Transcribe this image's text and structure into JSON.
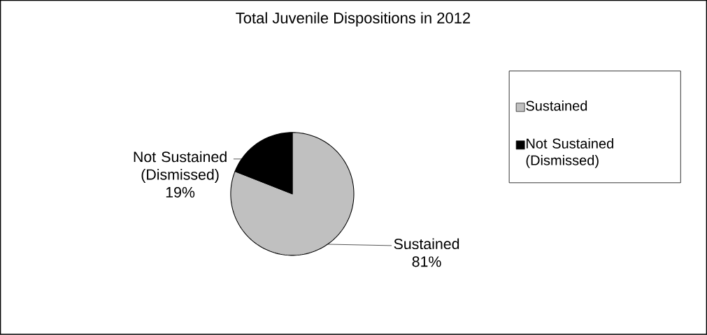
{
  "chart_data": {
    "type": "pie",
    "title": "Total Juvenile Dispositions in 2012",
    "categories": [
      "Sustained",
      "Not Sustained (Dismissed)"
    ],
    "values": [
      81,
      19
    ],
    "colors": [
      "#c0c0c0",
      "#000000"
    ],
    "value_labels": [
      "81%",
      "19%"
    ],
    "legend": "right"
  }
}
